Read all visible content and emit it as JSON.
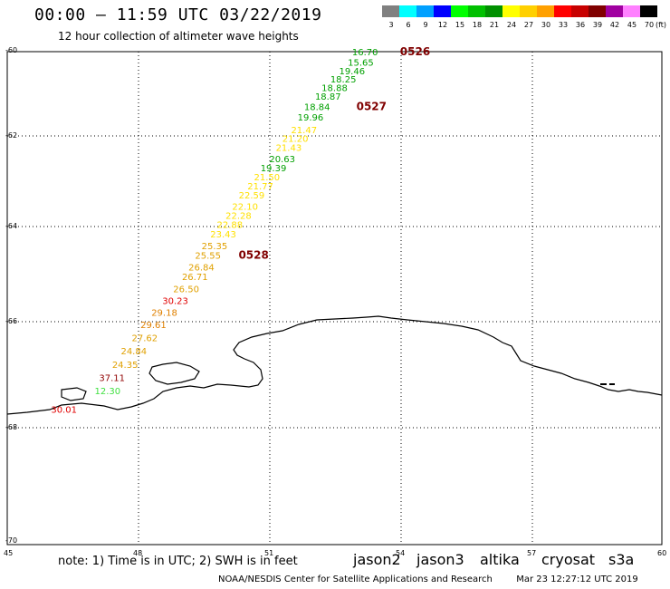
{
  "header": {
    "title": "00:00 – 11:59 UTC 03/22/2019",
    "subtitle": "12 hour collection of altimeter wave heights"
  },
  "colorbar": {
    "unit": "(ft)",
    "labels": [
      "3",
      "6",
      "9",
      "12",
      "15",
      "18",
      "21",
      "24",
      "27",
      "30",
      "33",
      "36",
      "39",
      "42",
      "45",
      "70"
    ],
    "colors": [
      "#808080",
      "#00ffff",
      "#00a0ff",
      "#0000ff",
      "#00ff00",
      "#00c000",
      "#009000",
      "#ffff00",
      "#ffd000",
      "#ffa000",
      "#ff0000",
      "#c80000",
      "#800000",
      "#a000a0",
      "#ff80ff",
      "#000000"
    ]
  },
  "axes": {
    "y_ticks": [
      "-60",
      "-62",
      "-64",
      "-66",
      "-68",
      "-70"
    ],
    "x_ticks": [
      "45",
      "48",
      "51",
      "54",
      "57",
      "60"
    ],
    "lat_range": [
      -70,
      -60
    ],
    "lon_range": [
      45,
      60
    ]
  },
  "time_labels": [
    {
      "text": "0526",
      "lat": -60.0,
      "lon": 54.0
    },
    {
      "text": "0527",
      "lat": -61.3,
      "lon": 53.0
    },
    {
      "text": "0528",
      "lat": -64.6,
      "lon": 50.3
    }
  ],
  "observations": [
    {
      "value": "16.70",
      "lat": -60.0,
      "lon": 53.2,
      "color": "#00a000"
    },
    {
      "value": "15.65",
      "lat": -60.25,
      "lon": 53.1,
      "color": "#00a000"
    },
    {
      "value": "19.46",
      "lat": -60.45,
      "lon": 52.9,
      "color": "#00a000"
    },
    {
      "value": "18.25",
      "lat": -60.65,
      "lon": 52.7,
      "color": "#00a000"
    },
    {
      "value": "18.88",
      "lat": -60.85,
      "lon": 52.5,
      "color": "#00a000"
    },
    {
      "value": "18.87",
      "lat": -61.05,
      "lon": 52.35,
      "color": "#00a000"
    },
    {
      "value": "18.84",
      "lat": -61.3,
      "lon": 52.1,
      "color": "#00a000"
    },
    {
      "value": "19.96",
      "lat": -61.55,
      "lon": 51.95,
      "color": "#00a000"
    },
    {
      "value": "21.47",
      "lat": -61.85,
      "lon": 51.8,
      "color": "#ffe000"
    },
    {
      "value": "21.20",
      "lat": -62.05,
      "lon": 51.6,
      "color": "#ffe000"
    },
    {
      "value": "21.43",
      "lat": -62.25,
      "lon": 51.45,
      "color": "#ffe000"
    },
    {
      "value": "20.63",
      "lat": -62.5,
      "lon": 51.3,
      "color": "#00a000"
    },
    {
      "value": "19.39",
      "lat": -62.7,
      "lon": 51.1,
      "color": "#00a000"
    },
    {
      "value": "21.50",
      "lat": -62.9,
      "lon": 50.95,
      "color": "#ffe000"
    },
    {
      "value": "21.77",
      "lat": -63.1,
      "lon": 50.8,
      "color": "#ffe000"
    },
    {
      "value": "22.59",
      "lat": -63.3,
      "lon": 50.6,
      "color": "#ffe000"
    },
    {
      "value": "22.10",
      "lat": -63.55,
      "lon": 50.45,
      "color": "#ffe000"
    },
    {
      "value": "22.28",
      "lat": -63.75,
      "lon": 50.3,
      "color": "#ffe000"
    },
    {
      "value": "22.88",
      "lat": -63.95,
      "lon": 50.1,
      "color": "#ffe000"
    },
    {
      "value": "23.43",
      "lat": -64.15,
      "lon": 49.95,
      "color": "#ffe000"
    },
    {
      "value": "25.35",
      "lat": -64.4,
      "lon": 49.75,
      "color": "#e0a000"
    },
    {
      "value": "25.55",
      "lat": -64.6,
      "lon": 49.6,
      "color": "#e0a000"
    },
    {
      "value": "26.84",
      "lat": -64.85,
      "lon": 49.45,
      "color": "#e0a000"
    },
    {
      "value": "26.71",
      "lat": -65.05,
      "lon": 49.3,
      "color": "#e0a000"
    },
    {
      "value": "26.50",
      "lat": -65.3,
      "lon": 49.1,
      "color": "#e0a000"
    },
    {
      "value": "30.23",
      "lat": -65.55,
      "lon": 48.85,
      "color": "#e00000"
    },
    {
      "value": "29.18",
      "lat": -65.8,
      "lon": 48.6,
      "color": "#e08000"
    },
    {
      "value": "29.61",
      "lat": -66.05,
      "lon": 48.35,
      "color": "#e08000"
    },
    {
      "value": "27.62",
      "lat": -66.3,
      "lon": 48.15,
      "color": "#e0a000"
    },
    {
      "value": "24.84",
      "lat": -66.55,
      "lon": 47.9,
      "color": "#e0a000"
    },
    {
      "value": "24.35",
      "lat": -66.8,
      "lon": 47.7,
      "color": "#e0a000"
    },
    {
      "value": "37.11",
      "lat": -67.05,
      "lon": 47.4,
      "color": "#900000"
    },
    {
      "value": "12.30",
      "lat": -67.3,
      "lon": 47.3,
      "color": "#40e040"
    },
    {
      "value": "30.01",
      "lat": -67.65,
      "lon": 46.3,
      "color": "#e00000"
    }
  ],
  "footer": {
    "note": "note: 1) Time is in UTC; 2) SWH is in feet",
    "satellites": [
      {
        "name": "jason2",
        "color": "#0000ff"
      },
      {
        "name": "jason3",
        "color": "#009000"
      },
      {
        "name": "altika",
        "color": "#ff9900"
      },
      {
        "name": "cryosat",
        "color": "#ff0000"
      },
      {
        "name": "s3a",
        "color": "#c00000"
      }
    ],
    "credit": "NOAA/NESDIS Center for Satellite Applications and Research",
    "timestamp": "Mar 23 12:27:12 UTC 2019"
  }
}
